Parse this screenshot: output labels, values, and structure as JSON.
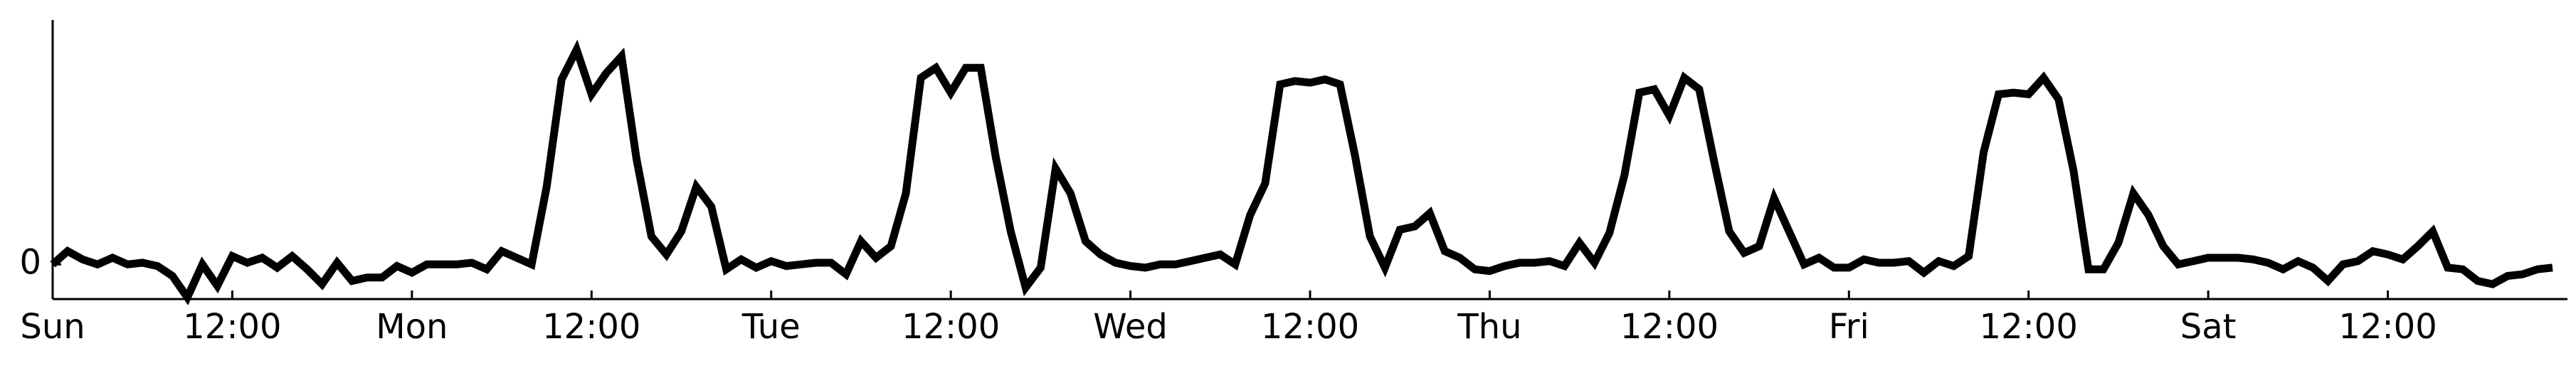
{
  "chart_data": {
    "type": "line",
    "color": "#000000",
    "x": [
      0,
      1,
      2,
      3,
      4,
      5,
      6,
      7,
      8,
      9,
      10,
      11,
      12,
      13,
      14,
      15,
      16,
      17,
      18,
      19,
      20,
      21,
      22,
      23,
      24,
      25,
      26,
      27,
      28,
      29,
      30,
      31,
      32,
      33,
      34,
      35,
      36,
      37,
      38,
      39,
      40,
      41,
      42,
      43,
      44,
      45,
      46,
      47,
      48,
      49,
      50,
      51,
      52,
      53,
      54,
      55,
      56,
      57,
      58,
      59,
      60,
      61,
      62,
      63,
      64,
      65,
      66,
      67,
      68,
      69,
      70,
      71,
      72,
      73,
      74,
      75,
      76,
      77,
      78,
      79,
      80,
      81,
      82,
      83,
      84,
      85,
      86,
      87,
      88,
      89,
      90,
      91,
      92,
      93,
      94,
      95,
      96,
      97,
      98,
      99,
      100,
      101,
      102,
      103,
      104,
      105,
      106,
      107,
      108,
      109,
      110,
      111,
      112,
      113,
      114,
      115,
      116,
      117,
      118,
      119,
      120,
      121,
      122,
      123,
      124,
      125,
      126,
      127,
      128,
      129,
      130,
      131,
      132,
      133,
      134,
      135,
      136,
      137,
      138,
      139,
      140,
      141,
      142,
      143,
      144,
      145,
      146,
      147,
      148,
      149,
      150,
      151,
      152,
      153,
      154,
      155,
      156,
      157,
      158,
      159,
      160,
      161,
      162,
      163,
      164,
      165,
      166,
      167
    ],
    "values": [
      0,
      0.8,
      0.3,
      0,
      0.4,
      0,
      0.1,
      -0.1,
      -0.7,
      -2,
      0,
      -1.3,
      0.5,
      0.1,
      0.4,
      -0.2,
      0.5,
      -0.3,
      -1.2,
      0.1,
      -1,
      -0.8,
      -0.8,
      -0.1,
      -0.5,
      0,
      0,
      0,
      0.1,
      -0.3,
      0.8,
      0.4,
      0,
      4.7,
      11.2,
      13,
      10.3,
      11.6,
      12.6,
      6.4,
      1.7,
      0.6,
      2,
      4.7,
      3.5,
      -0.3,
      0.3,
      -0.2,
      0.2,
      -0.1,
      0,
      0.1,
      0.1,
      -0.6,
      1.4,
      0.4,
      1.1,
      4.3,
      11.3,
      11.9,
      10.4,
      11.9,
      11.9,
      6.5,
      2,
      -1.4,
      -0.2,
      5.8,
      4.3,
      1.4,
      0.6,
      0.1,
      -0.1,
      -0.2,
      0,
      0,
      0.2,
      0.4,
      0.6,
      0,
      3,
      4.9,
      10.9,
      11.1,
      11,
      11.2,
      10.9,
      6.6,
      1.7,
      -0.2,
      2.1,
      2.3,
      3.1,
      0.8,
      0.4,
      -0.3,
      -0.4,
      -0.1,
      0.1,
      0.1,
      0.2,
      -0.1,
      1.3,
      0.1,
      1.9,
      5.4,
      10.4,
      10.6,
      9,
      11.3,
      10.6,
      6.2,
      2,
      0.7,
      1.1,
      4,
      2,
      0,
      0.4,
      -0.2,
      -0.2,
      0.3,
      0.1,
      0.1,
      0.2,
      -0.5,
      0.2,
      -0.1,
      0.5,
      6.8,
      10.3,
      10.4,
      10.3,
      11.3,
      10,
      5.7,
      -0.3,
      -0.3,
      1.3,
      4.3,
      3,
      1.1,
      0,
      0.2,
      0.4,
      0.4,
      0.4,
      0.3,
      0.1,
      -0.3,
      0.2,
      -0.2,
      -1,
      0,
      0.2,
      0.8,
      0.6,
      0.3,
      1.1,
      2,
      -0.2,
      -0.3,
      -1,
      -1.2,
      -0.7,
      -0.6,
      -0.3,
      -0.2
    ],
    "xlim": [
      0,
      168
    ],
    "xticks": [
      {
        "value": 0,
        "label": "Sun"
      },
      {
        "value": 12,
        "label": "12:00"
      },
      {
        "value": 24,
        "label": "Mon"
      },
      {
        "value": 36,
        "label": "12:00"
      },
      {
        "value": 48,
        "label": "Tue"
      },
      {
        "value": 60,
        "label": "12:00"
      },
      {
        "value": 72,
        "label": "Wed"
      },
      {
        "value": 84,
        "label": "12:00"
      },
      {
        "value": 96,
        "label": "Thu"
      },
      {
        "value": 108,
        "label": "12:00"
      },
      {
        "value": 120,
        "label": "Fri"
      },
      {
        "value": 132,
        "label": "12:00"
      },
      {
        "value": 144,
        "label": "Sat"
      },
      {
        "value": 156,
        "label": "12:00"
      }
    ],
    "ylim": [
      -2.1,
      14.8
    ],
    "yticks": [
      0
    ]
  }
}
